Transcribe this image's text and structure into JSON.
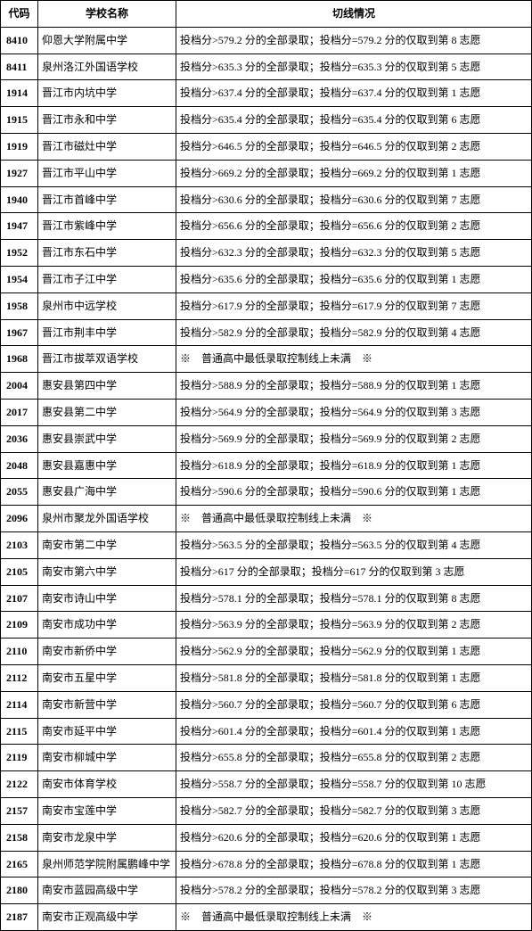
{
  "header": {
    "code": "代码",
    "school": "学校名称",
    "cutoff": "切线情况"
  },
  "note_text": "※　普通高中最低录取控制线上未满　※",
  "rows": [
    {
      "code": "8410",
      "school": "仰恩大学附属中学",
      "type": "score",
      "score": "579.2",
      "choice": "8"
    },
    {
      "code": "8411",
      "school": "泉州洛江外国语学校",
      "type": "score",
      "score": "635.3",
      "choice": "5"
    },
    {
      "code": "1914",
      "school": "晋江市内坑中学",
      "type": "score",
      "score": "637.4",
      "choice": "1"
    },
    {
      "code": "1915",
      "school": "晋江市永和中学",
      "type": "score",
      "score": "635.4",
      "choice": "6"
    },
    {
      "code": "1919",
      "school": "晋江市磁灶中学",
      "type": "score",
      "score": "646.5",
      "choice": "2"
    },
    {
      "code": "1927",
      "school": "晋江市平山中学",
      "type": "score",
      "score": "669.2",
      "choice": "1"
    },
    {
      "code": "1940",
      "school": "晋江市首峰中学",
      "type": "score",
      "score": "630.6",
      "choice": "7"
    },
    {
      "code": "1947",
      "school": "晋江市紫峰中学",
      "type": "score",
      "score": "656.6",
      "choice": "2"
    },
    {
      "code": "1952",
      "school": "晋江市东石中学",
      "type": "score",
      "score": "632.3",
      "choice": "5"
    },
    {
      "code": "1954",
      "school": "晋江市子江中学",
      "type": "score",
      "score": "635.6",
      "choice": "1"
    },
    {
      "code": "1958",
      "school": "泉州市中远学校",
      "type": "score",
      "score": "617.9",
      "choice": "7"
    },
    {
      "code": "1967",
      "school": "晋江市荆丰中学",
      "type": "score",
      "score": "582.9",
      "choice": "4"
    },
    {
      "code": "1968",
      "school": "晋江市拔萃双语学校",
      "type": "note"
    },
    {
      "code": "2004",
      "school": "惠安县第四中学",
      "type": "score",
      "score": "588.9",
      "choice": "1"
    },
    {
      "code": "2017",
      "school": "惠安县第二中学",
      "type": "score",
      "score": "564.9",
      "choice": "3"
    },
    {
      "code": "2036",
      "school": "惠安县崇武中学",
      "type": "score",
      "score": "569.9",
      "choice": "2"
    },
    {
      "code": "2048",
      "school": "惠安县嘉惠中学",
      "type": "score",
      "score": "618.9",
      "choice": "1"
    },
    {
      "code": "2055",
      "school": "惠安县广海中学",
      "type": "score",
      "score": "590.6",
      "choice": "1"
    },
    {
      "code": "2096",
      "school": "泉州市聚龙外国语学校",
      "type": "note"
    },
    {
      "code": "2103",
      "school": "南安市第二中学",
      "type": "score",
      "score": "563.5",
      "choice": "4"
    },
    {
      "code": "2105",
      "school": "南安市第六中学",
      "type": "score",
      "score": "617",
      "choice": "3"
    },
    {
      "code": "2107",
      "school": "南安市诗山中学",
      "type": "score",
      "score": "578.1",
      "choice": "8"
    },
    {
      "code": "2109",
      "school": "南安市成功中学",
      "type": "score",
      "score": "563.9",
      "choice": "2"
    },
    {
      "code": "2110",
      "school": "南安市新侨中学",
      "type": "score",
      "score": "562.9",
      "choice": "1"
    },
    {
      "code": "2112",
      "school": "南安市五星中学",
      "type": "score",
      "score": "581.8",
      "choice": "1"
    },
    {
      "code": "2114",
      "school": "南安市新营中学",
      "type": "score",
      "score": "560.7",
      "choice": "6"
    },
    {
      "code": "2115",
      "school": "南安市延平中学",
      "type": "score",
      "score": "601.4",
      "choice": "1"
    },
    {
      "code": "2119",
      "school": "南安市柳城中学",
      "type": "score",
      "score": "655.8",
      "choice": "2"
    },
    {
      "code": "2122",
      "school": "南安市体育学校",
      "type": "score",
      "score": "558.7",
      "choice": "10"
    },
    {
      "code": "2157",
      "school": "南安市宝莲中学",
      "type": "score",
      "score": "582.7",
      "choice": "3"
    },
    {
      "code": "2158",
      "school": "南安市龙泉中学",
      "type": "score",
      "score": "620.6",
      "choice": "1"
    },
    {
      "code": "2165",
      "school": "泉州师范学院附属鹏峰中学",
      "type": "score",
      "score": "678.8",
      "choice": "1"
    },
    {
      "code": "2180",
      "school": "南安市蓝园高级中学",
      "type": "score",
      "score": "578.2",
      "choice": "3"
    },
    {
      "code": "2187",
      "school": "南安市正观高级中学",
      "type": "note"
    }
  ]
}
